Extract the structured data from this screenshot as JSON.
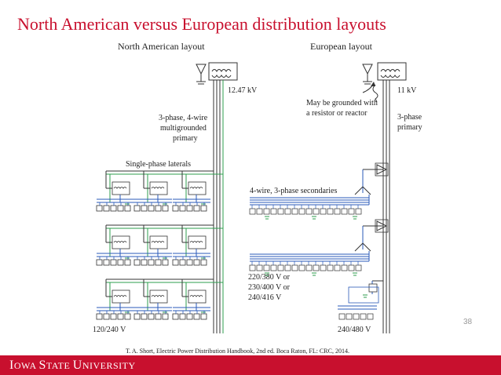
{
  "title": "North American versus European distribution layouts",
  "diagram": {
    "north_american": {
      "heading": "North American layout",
      "voltage": "12.47 kV",
      "primary_line1": "3-phase, 4-wire",
      "primary_line2": "multigrounded",
      "primary_line3": "primary",
      "laterals": "Single-phase laterals",
      "secondary_voltage": "120/240 V"
    },
    "european": {
      "heading": "European layout",
      "voltage": "11 kV",
      "ground_note1": "May be grounded with",
      "ground_note2": "a resistor or reactor",
      "primary_line1": "3-phase",
      "primary_line2": "primary",
      "secondaries": "4-wire, 3-phase secondaries",
      "sec_v1": "220/380 V or",
      "sec_v2": "230/400 V or",
      "sec_v3": "240/416 V",
      "secondary_voltage": "240/480 V"
    },
    "colors": {
      "primary": "#333333",
      "lateral": "#2e9e4e",
      "secondary": "#2a5ab8",
      "service": "#333333"
    }
  },
  "page_number": "38",
  "citation": "T. A. Short, Electric Power Distribution Handbook, 2nd ed. Boca Raton, FL: CRC, 2014.",
  "footer": {
    "logo_text": "Iowa State University"
  }
}
